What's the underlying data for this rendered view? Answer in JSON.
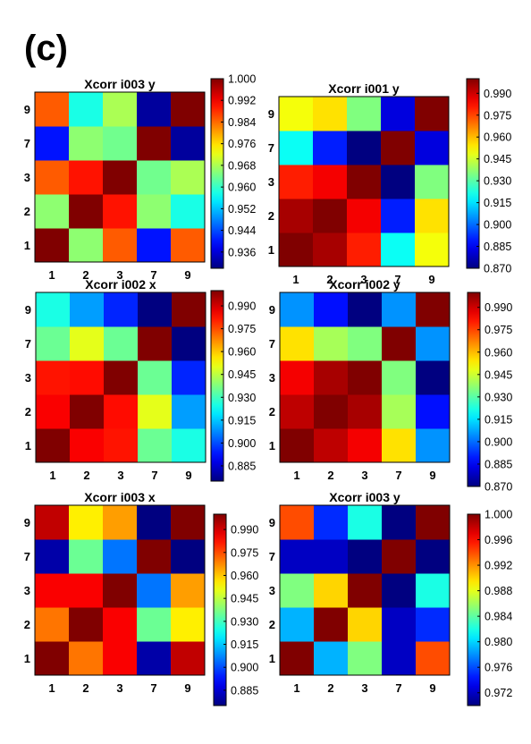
{
  "figure_label": "(c)",
  "chart_data": [
    {
      "type": "heatmap",
      "title": "Xcorr  i003 y",
      "x_categories": [
        "1",
        "2",
        "3",
        "7",
        "9"
      ],
      "y_categories": [
        "1",
        "2",
        "3",
        "7",
        "9"
      ],
      "values": [
        [
          1.0,
          0.966,
          0.985,
          0.94,
          0.985
        ],
        [
          0.966,
          1.0,
          0.99,
          0.966,
          0.958
        ],
        [
          0.985,
          0.99,
          1.0,
          0.964,
          0.968
        ],
        [
          0.94,
          0.966,
          0.964,
          1.0,
          0.932
        ],
        [
          0.985,
          0.958,
          0.968,
          0.932,
          1.0
        ]
      ],
      "colorbar": {
        "min": 0.93,
        "max": 1.0,
        "ticks": [
          "1.000",
          "0.992",
          "0.984",
          "0.976",
          "0.968",
          "0.960",
          "0.952",
          "0.944",
          "0.936"
        ]
      }
    },
    {
      "type": "heatmap",
      "title": "Xcorr  i001 y",
      "x_categories": [
        "1",
        "2",
        "3",
        "7",
        "9"
      ],
      "y_categories": [
        "1",
        "2",
        "3",
        "7",
        "9"
      ],
      "values": [
        [
          1.0,
          0.995,
          0.98,
          0.92,
          0.95
        ],
        [
          0.995,
          1.0,
          0.985,
          0.89,
          0.955
        ],
        [
          0.98,
          0.985,
          1.0,
          0.87,
          0.935
        ],
        [
          0.92,
          0.89,
          0.87,
          1.0,
          0.882
        ],
        [
          0.95,
          0.955,
          0.935,
          0.882,
          1.0
        ]
      ],
      "colorbar": {
        "min": 0.87,
        "max": 1.0,
        "ticks": [
          "0.990",
          "0.975",
          "0.960",
          "0.945",
          "0.930",
          "0.915",
          "0.900",
          "0.885",
          "0.870"
        ]
      }
    },
    {
      "type": "heatmap",
      "title": "Xcorr  i002 x",
      "x_categories": [
        "1",
        "2",
        "3",
        "7",
        "9"
      ],
      "y_categories": [
        "1",
        "2",
        "3",
        "7",
        "9"
      ],
      "values": [
        [
          1.0,
          0.985,
          0.982,
          0.935,
          0.925
        ],
        [
          0.985,
          1.0,
          0.983,
          0.95,
          0.91
        ],
        [
          0.982,
          0.983,
          1.0,
          0.935,
          0.895
        ],
        [
          0.935,
          0.95,
          0.935,
          1.0,
          0.875
        ],
        [
          0.925,
          0.91,
          0.895,
          0.875,
          1.0
        ]
      ],
      "colorbar": {
        "min": 0.875,
        "max": 1.0,
        "ticks": [
          "0.990",
          "0.975",
          "0.960",
          "0.945",
          "0.930",
          "0.915",
          "0.900",
          "0.885"
        ]
      }
    },
    {
      "type": "heatmap",
      "title": "Xcorr  i002 y",
      "x_categories": [
        "1",
        "2",
        "3",
        "7",
        "9"
      ],
      "y_categories": [
        "1",
        "2",
        "3",
        "7",
        "9"
      ],
      "values": [
        [
          1.0,
          0.992,
          0.985,
          0.955,
          0.905
        ],
        [
          0.992,
          1.0,
          0.995,
          0.94,
          0.888
        ],
        [
          0.985,
          0.995,
          1.0,
          0.935,
          0.87
        ],
        [
          0.955,
          0.94,
          0.935,
          1.0,
          0.905
        ],
        [
          0.905,
          0.888,
          0.87,
          0.905,
          1.0
        ]
      ],
      "colorbar": {
        "min": 0.87,
        "max": 1.0,
        "ticks": [
          "0.990",
          "0.975",
          "0.960",
          "0.945",
          "0.930",
          "0.915",
          "0.900",
          "0.885",
          "0.870"
        ]
      }
    },
    {
      "type": "heatmap",
      "title": "Xcorr  i003 x",
      "x_categories": [
        "1",
        "2",
        "3",
        "7",
        "9"
      ],
      "y_categories": [
        "1",
        "2",
        "3",
        "7",
        "9"
      ],
      "values": [
        [
          1.0,
          0.97,
          0.985,
          0.88,
          0.992
        ],
        [
          0.97,
          1.0,
          0.985,
          0.935,
          0.955
        ],
        [
          0.985,
          0.985,
          1.0,
          0.905,
          0.965
        ],
        [
          0.88,
          0.935,
          0.905,
          1.0,
          0.875
        ],
        [
          0.992,
          0.955,
          0.965,
          0.875,
          1.0
        ]
      ],
      "colorbar": {
        "min": 0.875,
        "max": 1.0,
        "ticks": [
          "0.990",
          "0.975",
          "0.960",
          "0.945",
          "0.930",
          "0.915",
          "0.900",
          "0.885"
        ]
      }
    },
    {
      "type": "heatmap",
      "title": "Xcorr  i003 y",
      "x_categories": [
        "1",
        "2",
        "3",
        "7",
        "9"
      ],
      "y_categories": [
        "1",
        "2",
        "3",
        "7",
        "9"
      ],
      "values": [
        [
          1.0,
          0.979,
          0.985,
          0.972,
          0.994
        ],
        [
          0.979,
          1.0,
          0.99,
          0.972,
          0.975
        ],
        [
          0.985,
          0.99,
          1.0,
          0.97,
          0.982
        ],
        [
          0.972,
          0.972,
          0.97,
          1.0,
          0.97
        ],
        [
          0.994,
          0.975,
          0.982,
          0.97,
          1.0
        ]
      ],
      "colorbar": {
        "min": 0.97,
        "max": 1.0,
        "ticks": [
          "1.000",
          "0.996",
          "0.992",
          "0.988",
          "0.984",
          "0.980",
          "0.976",
          "0.972"
        ]
      }
    }
  ]
}
